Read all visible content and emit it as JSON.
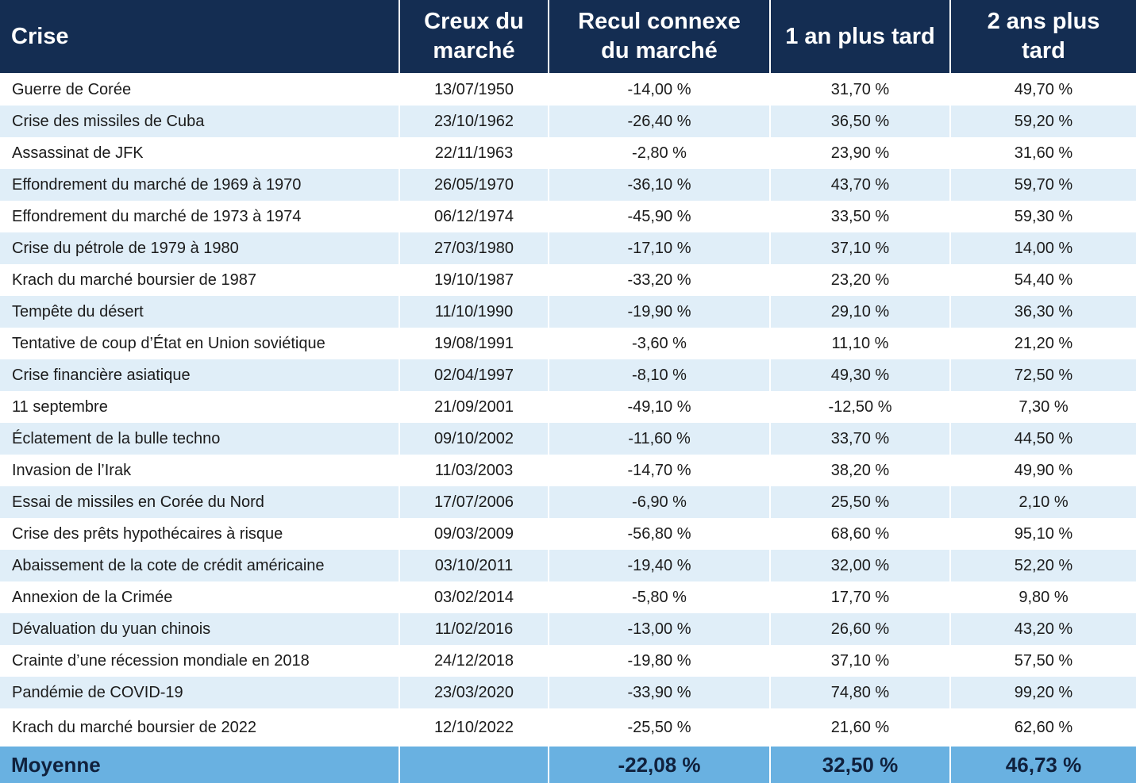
{
  "headers": {
    "crise": "Crise",
    "creux_line1": "Creux du",
    "creux_line2": "marché",
    "recul_line1": "Recul connexe",
    "recul_line2": "du marché",
    "un_an": "1 an plus tard",
    "deux_ans_line1": "2 ans plus",
    "deux_ans_line2": "tard"
  },
  "rows": [
    {
      "crise": "Guerre de Corée",
      "creux": "13/07/1950",
      "recul": "-14,00 %",
      "un_an": "31,70 %",
      "deux_ans": "49,70 %"
    },
    {
      "crise": "Crise des missiles de Cuba",
      "creux": "23/10/1962",
      "recul": "-26,40 %",
      "un_an": "36,50 %",
      "deux_ans": "59,20 %"
    },
    {
      "crise": "Assassinat de JFK",
      "creux": "22/11/1963",
      "recul": "-2,80 %",
      "un_an": "23,90 %",
      "deux_ans": "31,60 %"
    },
    {
      "crise": "Effondrement du marché de 1969 à 1970",
      "creux": "26/05/1970",
      "recul": "-36,10 %",
      "un_an": "43,70 %",
      "deux_ans": "59,70 %"
    },
    {
      "crise": "Effondrement du marché de 1973 à 1974",
      "creux": "06/12/1974",
      "recul": "-45,90 %",
      "un_an": "33,50 %",
      "deux_ans": "59,30 %"
    },
    {
      "crise": "Crise du pétrole de 1979 à 1980",
      "creux": "27/03/1980",
      "recul": "-17,10 %",
      "un_an": "37,10 %",
      "deux_ans": "14,00 %"
    },
    {
      "crise": "Krach du marché boursier de 1987",
      "creux": "19/10/1987",
      "recul": "-33,20 %",
      "un_an": "23,20 %",
      "deux_ans": "54,40 %"
    },
    {
      "crise": "Tempête du désert",
      "creux": "11/10/1990",
      "recul": "-19,90 %",
      "un_an": "29,10 %",
      "deux_ans": "36,30 %"
    },
    {
      "crise": "Tentative de coup d’État en Union soviétique",
      "creux": "19/08/1991",
      "recul": "-3,60 %",
      "un_an": "11,10 %",
      "deux_ans": "21,20 %"
    },
    {
      "crise": "Crise financière asiatique",
      "creux": "02/04/1997",
      "recul": "-8,10 %",
      "un_an": "49,30 %",
      "deux_ans": "72,50 %"
    },
    {
      "crise": "11 septembre",
      "creux": "21/09/2001",
      "recul": "-49,10 %",
      "un_an": "-12,50 %",
      "deux_ans": "7,30 %"
    },
    {
      "crise": "Éclatement de la bulle techno",
      "creux": "09/10/2002",
      "recul": "-11,60 %",
      "un_an": "33,70 %",
      "deux_ans": "44,50 %"
    },
    {
      "crise": "Invasion de l’Irak",
      "creux": "11/03/2003",
      "recul": "-14,70 %",
      "un_an": "38,20 %",
      "deux_ans": "49,90 %"
    },
    {
      "crise": "Essai de missiles en Corée du Nord",
      "creux": "17/07/2006",
      "recul": "-6,90 %",
      "un_an": "25,50 %",
      "deux_ans": "2,10 %"
    },
    {
      "crise": "Crise des prêts hypothécaires à risque",
      "creux": "09/03/2009",
      "recul": "-56,80 %",
      "un_an": "68,60 %",
      "deux_ans": "95,10 %"
    },
    {
      "crise": "Abaissement de la cote de crédit américaine",
      "creux": "03/10/2011",
      "recul": "-19,40 %",
      "un_an": "32,00 %",
      "deux_ans": "52,20 %"
    },
    {
      "crise": "Annexion de la Crimée",
      "creux": "03/02/2014",
      "recul": "-5,80 %",
      "un_an": "17,70 %",
      "deux_ans": "9,80 %"
    },
    {
      "crise": "Dévaluation du yuan chinois",
      "creux": "11/02/2016",
      "recul": "-13,00 %",
      "un_an": "26,60 %",
      "deux_ans": "43,20 %"
    },
    {
      "crise": "Crainte d’une récession mondiale en 2018",
      "creux": "24/12/2018",
      "recul": "-19,80 %",
      "un_an": "37,10 %",
      "deux_ans": "57,50 %"
    },
    {
      "crise": "Pandémie de COVID-19",
      "creux": "23/03/2020",
      "recul": "-33,90 %",
      "un_an": "74,80 %",
      "deux_ans": "99,20 %"
    },
    {
      "crise": "Krach du marché boursier de 2022",
      "creux": "12/10/2022",
      "recul": "-25,50 %",
      "un_an": "21,60 %",
      "deux_ans": "62,60 %"
    }
  ],
  "footer": {
    "label": "Moyenne",
    "creux": "",
    "recul": "-22,08 %",
    "un_an": "32,50 %",
    "deux_ans": "46,73 %"
  },
  "colors": {
    "header_bg": "#142d52",
    "stripe_bg": "#e0eef8",
    "footer_bg": "#69b1e1"
  }
}
